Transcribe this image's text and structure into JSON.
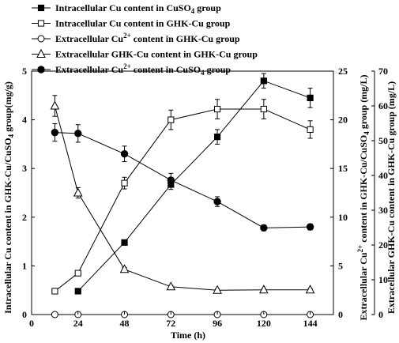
{
  "chart_data": {
    "type": "line",
    "x": [
      12,
      24,
      48,
      72,
      96,
      120,
      144
    ],
    "xlabel": "Time (h)",
    "x_ticks": [
      0,
      24,
      48,
      72,
      96,
      120,
      144
    ],
    "xlim": [
      0,
      156
    ],
    "axes": {
      "left": {
        "label": "Intracellular Cu content in GHK-Cu/CuSO4 group(mg/g)",
        "ylim": [
          0,
          5
        ],
        "ticks": [
          0,
          1,
          2,
          3,
          4,
          5
        ]
      },
      "right1": {
        "label": "Extracellular Cu2+ content in GHK-Cu/CuSO4 group (mg/L)",
        "ylim": [
          0,
          25
        ],
        "ticks": [
          0,
          5,
          10,
          15,
          20,
          25
        ]
      },
      "right2": {
        "label": "Extracellular GHK-Cu content in GHK-Cu group (mg/L)",
        "ylim": [
          0,
          70
        ],
        "ticks": [
          0,
          10,
          20,
          30,
          40,
          50,
          60,
          70
        ]
      }
    },
    "series": [
      {
        "name": "Intracellular Cu content in CuSO4 group",
        "marker": "filled-square",
        "axis": "left",
        "values": [
          null,
          0.48,
          1.48,
          2.67,
          3.65,
          4.8,
          4.45
        ],
        "errors": [
          null,
          0.03,
          0.05,
          0.1,
          0.15,
          0.15,
          0.2
        ]
      },
      {
        "name": "Intracellular Cu content in GHK-Cu group",
        "marker": "open-square",
        "axis": "left",
        "values": [
          0.48,
          0.85,
          2.7,
          4.0,
          4.22,
          4.22,
          3.8
        ],
        "errors": [
          0.03,
          0.05,
          0.12,
          0.2,
          0.2,
          0.2,
          0.18
        ]
      },
      {
        "name": "Extracellular Cu2+ content in GHK-Cu group",
        "marker": "open-circle",
        "axis": "right1",
        "values": [
          0,
          0,
          0,
          0,
          0,
          0,
          0
        ],
        "errors": [
          null,
          null,
          null,
          null,
          null,
          null,
          null
        ]
      },
      {
        "name": "Extracellular GHK-Cu content in GHK-Cu group",
        "marker": "open-triangle",
        "axis": "right2",
        "values": [
          60,
          35,
          13,
          8,
          7,
          7.1,
          7.1
        ],
        "errors": [
          3,
          1.5,
          0.5,
          0.4,
          0.4,
          0.4,
          0.4
        ]
      },
      {
        "name": "Extracellular Cu2+ content in CuSO4 group",
        "marker": "filled-circle",
        "axis": "right1",
        "values": [
          18.7,
          18.6,
          16.5,
          13.8,
          11.6,
          8.9,
          9.0
        ],
        "errors": [
          0.9,
          0.9,
          0.8,
          0.7,
          0.5,
          0.3,
          0.3
        ]
      }
    ],
    "legend": {
      "placement": "top-left",
      "entries": [
        {
          "marker": "filled-square",
          "text": "Intracellular Cu content in CuSO",
          "sub": "4",
          "sup": "",
          "tail": " group"
        },
        {
          "marker": "open-square",
          "text": "Intracellular Cu content in GHK-Cu group",
          "sub": "",
          "sup": "",
          "tail": ""
        },
        {
          "marker": "open-circle",
          "text": "Extracellular Cu",
          "sub": "",
          "sup": "2+",
          "tail": " content in GHK-Cu group"
        },
        {
          "marker": "open-triangle",
          "text": "Extracellular  GHK-Cu content in  GHK-Cu group",
          "sub": "",
          "sup": "",
          "tail": ""
        },
        {
          "marker": "filled-circle",
          "text": "Extracellular Cu",
          "sub": "",
          "sup": "2+",
          "tail": " content in  CuSO",
          "tail_sub": "4",
          "tail2": " group"
        }
      ]
    },
    "grid": false
  }
}
